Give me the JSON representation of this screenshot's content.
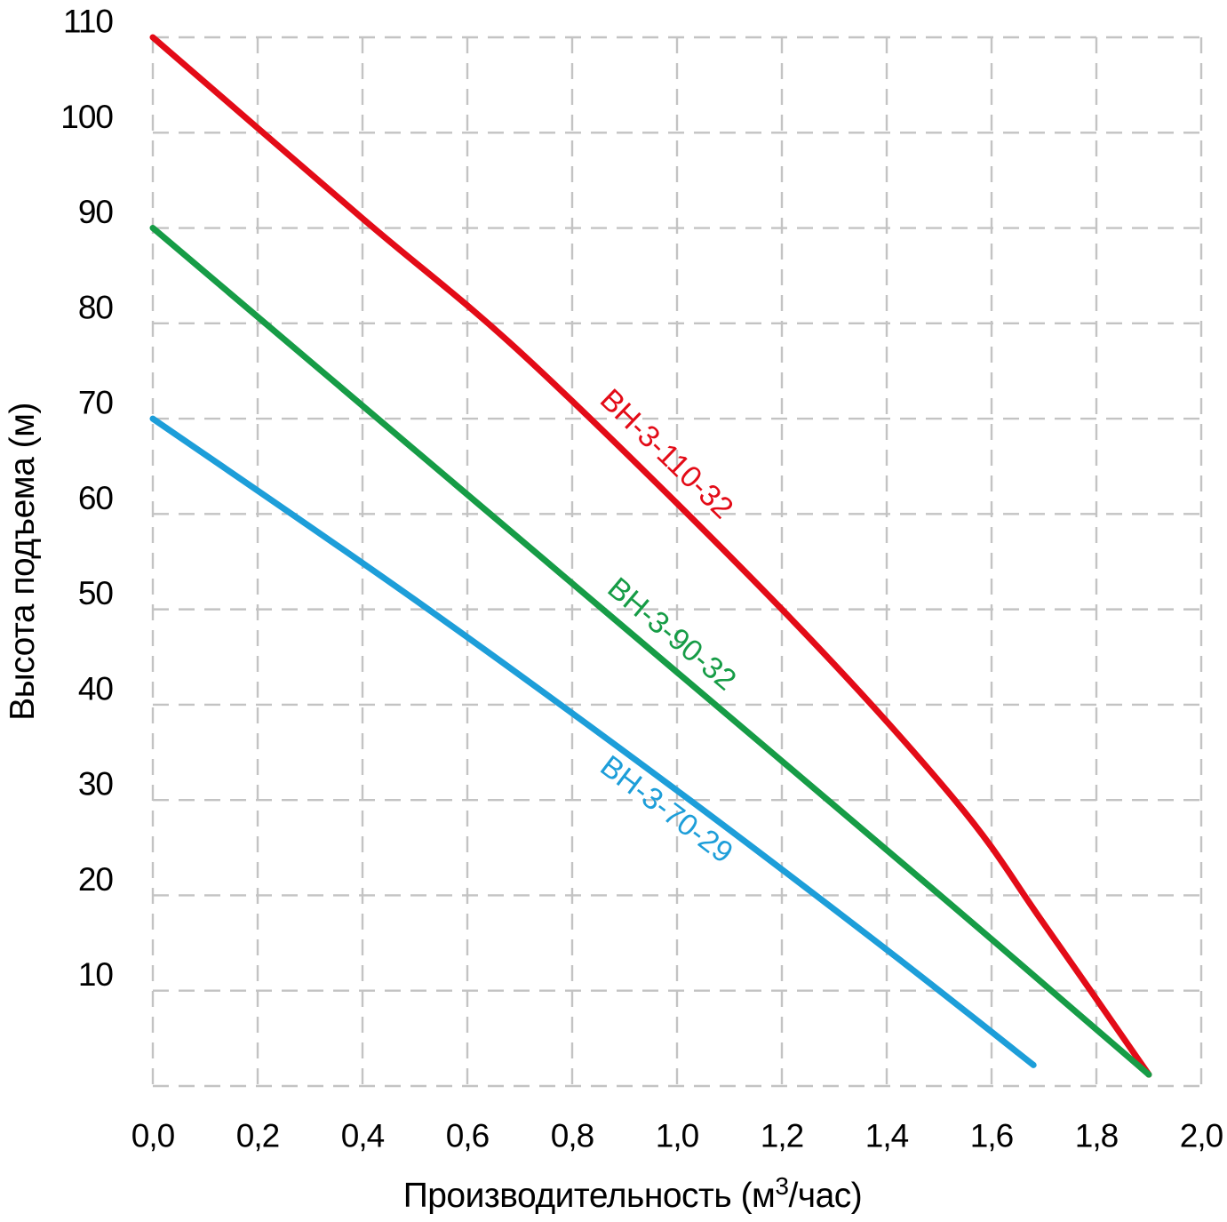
{
  "chart_data": {
    "type": "line",
    "title": "",
    "xlabel": "Производительность (м³/час)",
    "ylabel": "Высота подъема (м)",
    "xlabel_parts": {
      "main": "Производительность (м",
      "sup": "3",
      "tail": "/час)"
    },
    "xlim": [
      0.0,
      2.0
    ],
    "ylim": [
      0,
      110
    ],
    "grid": "dashed-both-axes",
    "legend_position": "labels-on-curves",
    "x_ticks": [
      {
        "value": 0.0,
        "label": "0,0"
      },
      {
        "value": 0.2,
        "label": "0,2"
      },
      {
        "value": 0.4,
        "label": "0,4"
      },
      {
        "value": 0.6,
        "label": "0,6"
      },
      {
        "value": 0.8,
        "label": "0,8"
      },
      {
        "value": 1.0,
        "label": "1,0"
      },
      {
        "value": 1.2,
        "label": "1,2"
      },
      {
        "value": 1.4,
        "label": "1,4"
      },
      {
        "value": 1.6,
        "label": "1,6"
      },
      {
        "value": 1.8,
        "label": "1,8"
      },
      {
        "value": 2.0,
        "label": "2,0"
      }
    ],
    "y_ticks": [
      {
        "value": 10,
        "label": "10"
      },
      {
        "value": 20,
        "label": "20"
      },
      {
        "value": 30,
        "label": "30"
      },
      {
        "value": 40,
        "label": "40"
      },
      {
        "value": 50,
        "label": "50"
      },
      {
        "value": 60,
        "label": "60"
      },
      {
        "value": 70,
        "label": "70"
      },
      {
        "value": 80,
        "label": "80"
      },
      {
        "value": 90,
        "label": "90"
      },
      {
        "value": 100,
        "label": "100"
      },
      {
        "value": 110,
        "label": "110"
      }
    ],
    "y_grid_values": [
      0,
      10,
      20,
      30,
      40,
      50,
      60,
      70,
      80,
      90,
      100,
      110
    ],
    "series": [
      {
        "name": "ВН-3-110-32",
        "color": "#e30b17",
        "points": [
          [
            0.0,
            110
          ],
          [
            0.4,
            91
          ],
          [
            0.72,
            76
          ],
          [
            1.2,
            50
          ],
          [
            1.53,
            30
          ],
          [
            1.7,
            17
          ],
          [
            1.9,
            1.2
          ]
        ],
        "label": {
          "q": 0.98,
          "h": 66.3,
          "angle_deg": 44
        }
      },
      {
        "name": "ВН-3-90-32",
        "color": "#169c46",
        "points": [
          [
            0.0,
            90
          ],
          [
            0.5,
            66.7
          ],
          [
            1.0,
            43.4
          ],
          [
            1.5,
            20.1
          ],
          [
            1.9,
            1.2
          ]
        ],
        "label": {
          "q": 0.99,
          "h": 47.4,
          "angle_deg": 40
        }
      },
      {
        "name": "ВН-3-70-29",
        "color": "#1d9ed9",
        "points": [
          [
            0.0,
            70
          ],
          [
            0.5,
            51
          ],
          [
            1.0,
            31
          ],
          [
            1.4,
            14.3
          ],
          [
            1.68,
            2.2
          ]
        ],
        "label": {
          "q": 0.98,
          "h": 29.0,
          "angle_deg": 37
        }
      }
    ]
  },
  "colors": {
    "background": "#ffffff",
    "grid": "#c3c3c3",
    "text": "#000000"
  }
}
